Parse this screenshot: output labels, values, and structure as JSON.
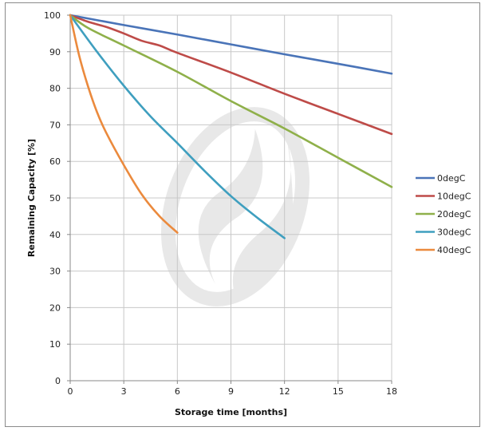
{
  "chart_data": {
    "type": "line",
    "xlabel": "Storage time [months]",
    "ylabel": "Remaining Capacity [%]",
    "xlim": [
      0,
      18
    ],
    "ylim": [
      0,
      100
    ],
    "x_ticks": [
      "0",
      "3",
      "6",
      "9",
      "12",
      "15",
      "18"
    ],
    "y_ticks": [
      "0",
      "10",
      "20",
      "30",
      "40",
      "50",
      "60",
      "70",
      "80",
      "90",
      "100"
    ],
    "grid": true,
    "legend_position": "right",
    "series": [
      {
        "name": "0degC",
        "color": "#4a74b8",
        "x": [
          0,
          3,
          6,
          9,
          12,
          15,
          18
        ],
        "y": [
          100,
          97.3,
          94.7,
          92,
          89.3,
          86.7,
          84
        ]
      },
      {
        "name": "10degC",
        "color": "#be4b48",
        "x": [
          0,
          1,
          2,
          3,
          4,
          5,
          6,
          9,
          12,
          15,
          18
        ],
        "y": [
          100,
          98.2,
          96.8,
          95,
          93,
          91.7,
          89.7,
          84.3,
          78.5,
          73,
          67.5
        ]
      },
      {
        "name": "20degC",
        "color": "#8fb04a",
        "x": [
          0,
          1,
          3,
          6,
          9,
          12,
          15,
          18
        ],
        "y": [
          100,
          96.5,
          91.7,
          84.5,
          76.5,
          69,
          61,
          53
        ]
      },
      {
        "name": "30degC",
        "color": "#3f9fbf",
        "x": [
          0,
          1.5,
          3,
          4.5,
          6,
          7.5,
          9,
          10.5,
          12
        ],
        "y": [
          100,
          90,
          80.7,
          72.3,
          65,
          57.5,
          50.5,
          44.5,
          39
        ]
      },
      {
        "name": "40degC",
        "color": "#eb8a3d",
        "x": [
          0,
          0.5,
          1,
          1.5,
          2,
          3,
          4,
          5,
          6
        ],
        "y": [
          100,
          89,
          80.5,
          73.5,
          68,
          59,
          51,
          45,
          40.5
        ]
      }
    ]
  }
}
